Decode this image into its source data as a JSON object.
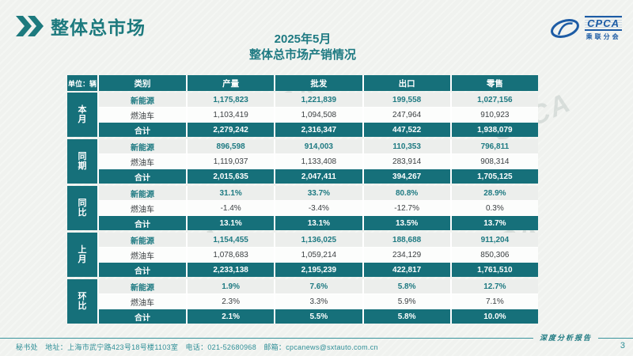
{
  "header": {
    "section_title": "整体总市场"
  },
  "titles": {
    "line1": "2025年5月",
    "line2": "整体总市场产销情况"
  },
  "logo": {
    "name": "CPCA",
    "subtitle": "乘联分会"
  },
  "watermark_text": "CPCA",
  "table": {
    "unit_label": "单位：辆",
    "columns": [
      "类别",
      "产量",
      "批发",
      "出口",
      "零售"
    ],
    "groups": [
      {
        "label": "本月",
        "rows": [
          {
            "category": "新能源",
            "type": "ne",
            "values": [
              "1,175,823",
              "1,221,839",
              "199,558",
              "1,027,156"
            ]
          },
          {
            "category": "燃油车",
            "type": "fuel",
            "values": [
              "1,103,419",
              "1,094,508",
              "247,964",
              "910,923"
            ]
          },
          {
            "category": "合计",
            "type": "total",
            "values": [
              "2,279,242",
              "2,316,347",
              "447,522",
              "1,938,079"
            ]
          }
        ]
      },
      {
        "label": "同期",
        "rows": [
          {
            "category": "新能源",
            "type": "ne",
            "values": [
              "896,598",
              "914,003",
              "110,353",
              "796,811"
            ]
          },
          {
            "category": "燃油车",
            "type": "fuel",
            "values": [
              "1,119,037",
              "1,133,408",
              "283,914",
              "908,314"
            ]
          },
          {
            "category": "合计",
            "type": "total",
            "values": [
              "2,015,635",
              "2,047,411",
              "394,267",
              "1,705,125"
            ]
          }
        ]
      },
      {
        "label": "同比",
        "rows": [
          {
            "category": "新能源",
            "type": "ne",
            "values": [
              "31.1%",
              "33.7%",
              "80.8%",
              "28.9%"
            ]
          },
          {
            "category": "燃油车",
            "type": "fuel",
            "values": [
              "-1.4%",
              "-3.4%",
              "-12.7%",
              "0.3%"
            ]
          },
          {
            "category": "合计",
            "type": "total",
            "values": [
              "13.1%",
              "13.1%",
              "13.5%",
              "13.7%"
            ]
          }
        ]
      },
      {
        "label": "上月",
        "rows": [
          {
            "category": "新能源",
            "type": "ne",
            "values": [
              "1,154,455",
              "1,136,025",
              "188,688",
              "911,204"
            ]
          },
          {
            "category": "燃油车",
            "type": "fuel",
            "values": [
              "1,078,683",
              "1,059,214",
              "234,129",
              "850,306"
            ]
          },
          {
            "category": "合计",
            "type": "total",
            "values": [
              "2,233,138",
              "2,195,239",
              "422,817",
              "1,761,510"
            ]
          }
        ]
      },
      {
        "label": "环比",
        "rows": [
          {
            "category": "新能源",
            "type": "ne",
            "values": [
              "1.9%",
              "7.6%",
              "5.8%",
              "12.7%"
            ]
          },
          {
            "category": "燃油车",
            "type": "fuel",
            "values": [
              "2.3%",
              "3.3%",
              "5.9%",
              "7.1%"
            ]
          },
          {
            "category": "合计",
            "type": "total",
            "values": [
              "2.1%",
              "5.5%",
              "5.8%",
              "10.0%"
            ]
          }
        ]
      }
    ]
  },
  "footer": {
    "info": "秘书处　地址：上海市武宁路423号18号楼1103室　电话：021-52680968　邮箱：cpcanews@sxtauto.com.cn",
    "report_label": "深度分析报告",
    "page_number": "3"
  },
  "colors": {
    "teal": "#16707a",
    "teal_text": "#1e7a82",
    "logo_blue": "#1d5ca5",
    "row_alt": "#eceeec",
    "row_white": "#fcfdfc",
    "page_bg": "#f0f2ef"
  }
}
